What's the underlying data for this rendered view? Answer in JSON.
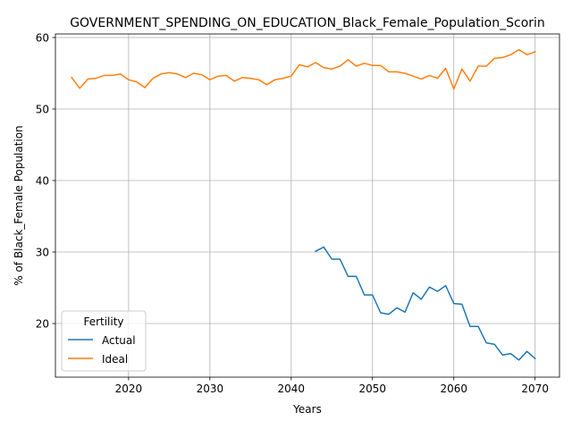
{
  "chart_data": {
    "type": "line",
    "title": "GOVERNMENT_SPENDING_ON_EDUCATION_Black_Female_Population_Scorin",
    "xlabel": "Years",
    "ylabel": "% of Black_Female Population",
    "xlim": [
      2011,
      2073
    ],
    "ylim": [
      12.5,
      60.5
    ],
    "xticks": [
      2020,
      2030,
      2040,
      2050,
      2060,
      2070
    ],
    "yticks": [
      20,
      30,
      40,
      50,
      60
    ],
    "grid": true,
    "legend": {
      "title": "Fertility",
      "placement": "lower-left"
    },
    "series": [
      {
        "name": "Actual",
        "color": "#1f77b4",
        "x": [
          2043,
          2044,
          2045,
          2046,
          2047,
          2048,
          2049,
          2050,
          2051,
          2052,
          2053,
          2054,
          2055,
          2056,
          2057,
          2058,
          2059,
          2060,
          2061,
          2062,
          2063,
          2064,
          2065,
          2066,
          2067,
          2068,
          2069,
          2070
        ],
        "y": [
          30.1,
          30.7,
          29.0,
          29.0,
          26.6,
          26.6,
          24.0,
          24.0,
          21.5,
          21.3,
          22.2,
          21.6,
          24.3,
          23.4,
          25.1,
          24.5,
          25.3,
          22.8,
          22.7,
          19.6,
          19.6,
          17.3,
          17.1,
          15.6,
          15.8,
          14.9,
          16.1,
          15.1
        ]
      },
      {
        "name": "Ideal",
        "color": "#ff7f0e",
        "x": [
          2013,
          2014,
          2015,
          2016,
          2017,
          2018,
          2019,
          2020,
          2021,
          2022,
          2023,
          2024,
          2025,
          2026,
          2027,
          2028,
          2029,
          2030,
          2031,
          2032,
          2033,
          2034,
          2035,
          2036,
          2037,
          2038,
          2039,
          2040,
          2041,
          2042,
          2043,
          2044,
          2045,
          2046,
          2047,
          2048,
          2049,
          2050,
          2051,
          2052,
          2053,
          2054,
          2055,
          2056,
          2057,
          2058,
          2059,
          2060,
          2061,
          2062,
          2063,
          2064,
          2065,
          2066,
          2067,
          2068,
          2069,
          2070
        ],
        "y": [
          54.4,
          52.9,
          54.2,
          54.3,
          54.7,
          54.7,
          54.9,
          54.1,
          53.8,
          53.0,
          54.3,
          54.9,
          55.1,
          54.9,
          54.4,
          55.0,
          54.8,
          54.1,
          54.6,
          54.7,
          53.9,
          54.4,
          54.3,
          54.1,
          53.4,
          54.1,
          54.3,
          54.6,
          56.2,
          55.9,
          56.5,
          55.8,
          55.6,
          56.0,
          56.9,
          56.0,
          56.4,
          56.1,
          56.1,
          55.2,
          55.2,
          55.0,
          54.6,
          54.2,
          54.7,
          54.3,
          55.7,
          52.8,
          55.6,
          53.9,
          56.0,
          56.0,
          57.1,
          57.2,
          57.6,
          58.3,
          57.6,
          58.0
        ]
      }
    ]
  }
}
